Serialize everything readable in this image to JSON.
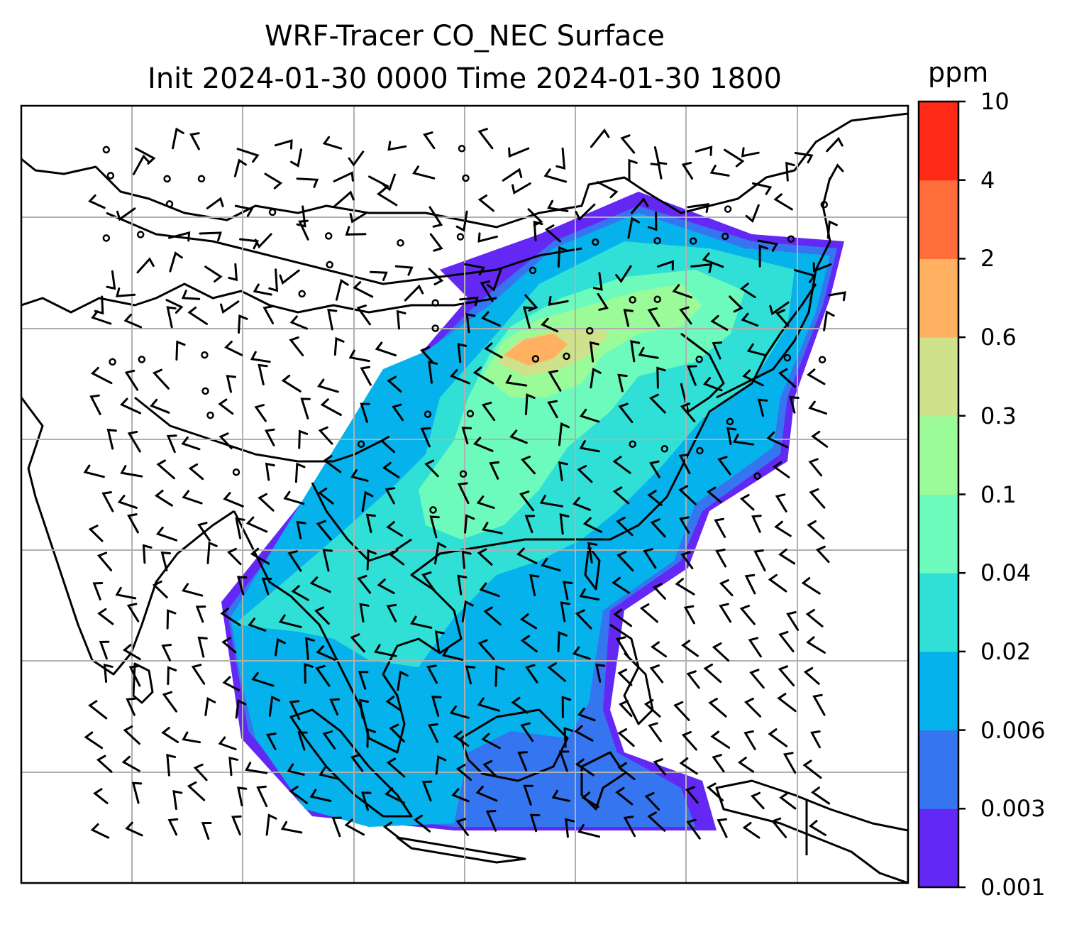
{
  "title": {
    "line1": "WRF-Tracer CO_NEC Surface",
    "line2": "Init 2024-01-30 0000 Time 2024-01-30 1800"
  },
  "colorbar": {
    "unit": "ppm",
    "levels": [
      "0.001",
      "0.003",
      "0.006",
      "0.02",
      "0.04",
      "0.1",
      "0.3",
      "0.6",
      "2",
      "4",
      "10"
    ],
    "colors": [
      "#6428f5",
      "#3575f0",
      "#05b2eb",
      "#30e0d6",
      "#6cfbbc",
      "#9afb98",
      "#cfe18a",
      "#ffb060",
      "#ff6e3a",
      "#ff2a15"
    ]
  },
  "map": {
    "background": "#ffffff",
    "gridline_color": "#b0b0b0",
    "coastline_color": "#000000",
    "features": [
      "coastlines",
      "country-borders",
      "wind-barbs",
      "calm-circles",
      "gridlines"
    ]
  }
}
